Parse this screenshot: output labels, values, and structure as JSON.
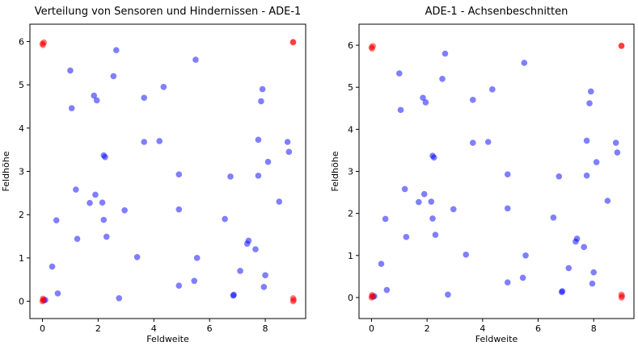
{
  "chart_data": [
    {
      "type": "scatter",
      "title": "Verteilung von Sensoren und Hindernissen - ADE-1",
      "xlabel": "Feldweite",
      "ylabel": "Feldhöhe",
      "xlim": [
        -0.45,
        9.45
      ],
      "ylim": [
        -0.4,
        6.4
      ],
      "xticks": [
        0,
        2,
        4,
        6,
        8
      ],
      "yticks": [
        0,
        1,
        2,
        3,
        4,
        5,
        6
      ],
      "grid": false
    },
    {
      "type": "scatter",
      "title": "ADE-1 - Achsenbeschnitten",
      "xlabel": "Feldweite",
      "ylabel": "Feldhöhe",
      "xlim": [
        -0.45,
        9.45
      ],
      "ylim": [
        -0.5,
        6.5
      ],
      "xticks": [
        0,
        2,
        4,
        6,
        8
      ],
      "yticks": [
        0,
        1,
        2,
        3,
        4,
        5,
        6
      ],
      "grid": false
    }
  ],
  "series": [
    {
      "color": "#0000ff",
      "points": [
        [
          0.05,
          0.02
        ],
        [
          0.1,
          0.03
        ],
        [
          0.35,
          0.8
        ],
        [
          0.5,
          1.87
        ],
        [
          0.55,
          0.18
        ],
        [
          1.0,
          5.33
        ],
        [
          1.05,
          4.46
        ],
        [
          1.2,
          2.58
        ],
        [
          1.25,
          1.44
        ],
        [
          1.7,
          2.27
        ],
        [
          1.85,
          4.75
        ],
        [
          1.9,
          2.46
        ],
        [
          1.95,
          4.64
        ],
        [
          2.15,
          2.28
        ],
        [
          2.2,
          3.37
        ],
        [
          2.2,
          1.88
        ],
        [
          2.25,
          3.33
        ],
        [
          2.3,
          1.49
        ],
        [
          2.55,
          5.2
        ],
        [
          2.65,
          5.8
        ],
        [
          2.75,
          0.07
        ],
        [
          2.95,
          2.1
        ],
        [
          3.4,
          1.02
        ],
        [
          3.65,
          4.7
        ],
        [
          3.65,
          3.68
        ],
        [
          4.2,
          3.7
        ],
        [
          4.35,
          4.95
        ],
        [
          4.9,
          2.93
        ],
        [
          4.9,
          2.12
        ],
        [
          4.9,
          0.36
        ],
        [
          5.45,
          0.47
        ],
        [
          5.5,
          5.58
        ],
        [
          5.55,
          1.0
        ],
        [
          6.55,
          1.9
        ],
        [
          6.75,
          2.88
        ],
        [
          6.85,
          0.13
        ],
        [
          6.87,
          0.15
        ],
        [
          7.1,
          0.7
        ],
        [
          7.35,
          1.33
        ],
        [
          7.4,
          1.4
        ],
        [
          7.65,
          1.2
        ],
        [
          7.75,
          3.73
        ],
        [
          7.75,
          2.9
        ],
        [
          7.85,
          4.62
        ],
        [
          7.9,
          4.9
        ],
        [
          7.95,
          0.33
        ],
        [
          8.0,
          0.6
        ],
        [
          8.1,
          3.22
        ],
        [
          8.5,
          2.3
        ],
        [
          8.8,
          3.68
        ],
        [
          8.85,
          3.45
        ]
      ]
    },
    {
      "color": "#ff0000",
      "points": [
        [
          0.0,
          5.95
        ],
        [
          0.02,
          5.92
        ],
        [
          0.05,
          5.98
        ],
        [
          0.0,
          0.0
        ],
        [
          0.03,
          0.03
        ],
        [
          0.02,
          0.06
        ],
        [
          9.0,
          5.98
        ],
        [
          9.0,
          5.99
        ],
        [
          9.0,
          0.0
        ],
        [
          9.02,
          0.03
        ],
        [
          9.0,
          0.07
        ]
      ]
    }
  ]
}
